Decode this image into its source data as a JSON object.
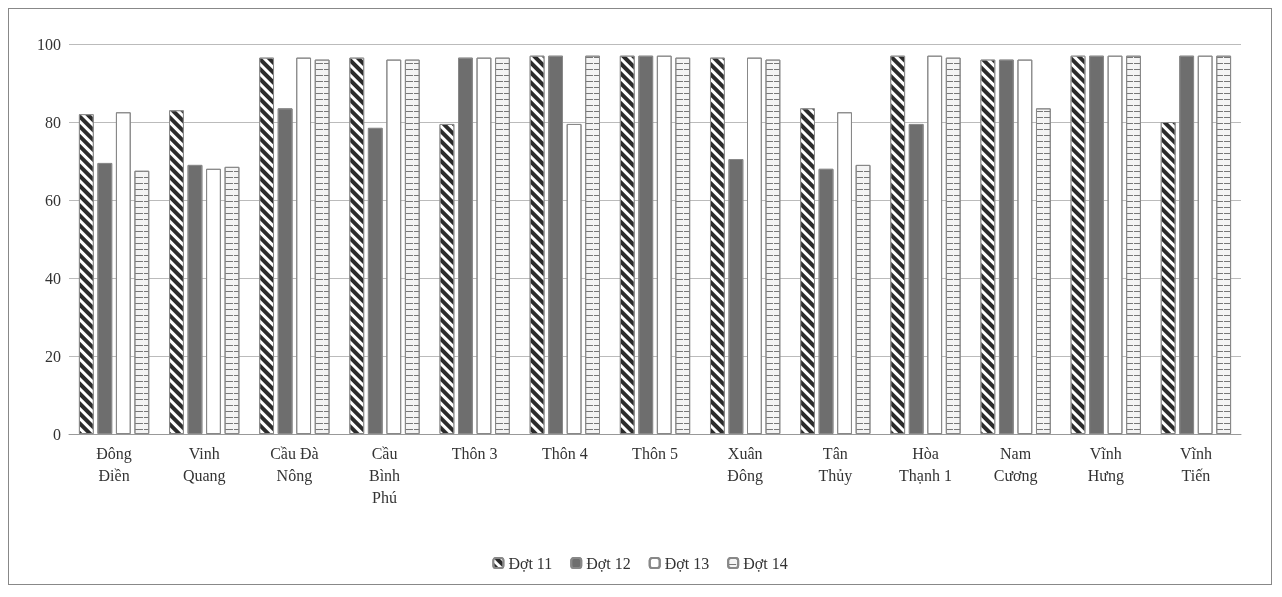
{
  "chart_data": {
    "type": "bar",
    "categories": [
      "Đông\nĐiền",
      "Vinh\nQuang",
      "Cầu Đà\nNông",
      "Cầu\nBình\nPhú",
      "Thôn 3",
      "Thôn 4",
      "Thôn 5",
      "Xuân\nĐông",
      "Tân\nThủy",
      "Hòa\nThạnh 1",
      "Nam\nCương",
      "Vĩnh\nHưng",
      "Vĩnh\nTiến"
    ],
    "series": [
      {
        "name": "Đợt 11",
        "color": "#2b2b2b",
        "values": [
          82,
          83,
          96.5,
          96.5,
          79.5,
          97,
          97,
          96.5,
          83.5,
          97,
          96,
          97,
          80
        ]
      },
      {
        "name": "Đợt 12",
        "color": "#6e6e6e",
        "values": [
          69.5,
          69,
          83.5,
          78.5,
          96.5,
          97,
          97,
          70.5,
          68,
          79.5,
          96,
          97,
          97
        ]
      },
      {
        "name": "Đợt 13",
        "color": "#ffffff",
        "values": [
          82.5,
          68,
          96.5,
          96,
          96.5,
          79.5,
          97,
          96.5,
          82.5,
          97,
          96,
          97,
          97
        ]
      },
      {
        "name": "Đợt 14",
        "color": "#f4f4f4",
        "values": [
          67.5,
          68.5,
          96,
          96,
          96.5,
          97,
          96.5,
          96,
          69,
          96.5,
          83.5,
          97,
          97
        ]
      }
    ],
    "ylim": [
      0,
      100
    ],
    "yticks": [
      0,
      20,
      40,
      60,
      80,
      100
    ],
    "grid": "y",
    "legend": "bottom"
  }
}
